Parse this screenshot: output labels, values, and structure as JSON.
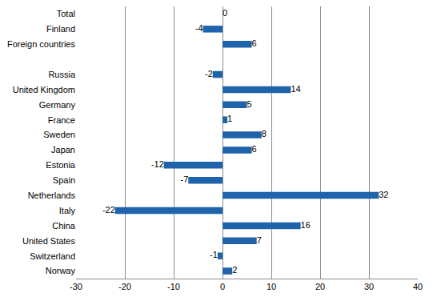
{
  "chart_data": {
    "type": "bar",
    "orientation": "horizontal",
    "categories": [
      "Total",
      "Finland",
      "Foreign countries",
      null,
      "Russia",
      "United Kingdom",
      "Germany",
      "France",
      "Sweden",
      "Japan",
      "Estonia",
      "Spain",
      "Netherlands",
      "Italy",
      "China",
      "United States",
      "Switzerland",
      "Norway"
    ],
    "values": [
      0,
      -4,
      6,
      null,
      -2,
      14,
      5,
      1,
      8,
      6,
      -12,
      -7,
      32,
      -22,
      16,
      7,
      -1,
      2
    ],
    "color": "#1f63aa",
    "xlim": [
      -30,
      40
    ],
    "xticks": [
      -30,
      -20,
      -10,
      0,
      10,
      20,
      30,
      40
    ],
    "grid": true,
    "data_labels": true
  }
}
